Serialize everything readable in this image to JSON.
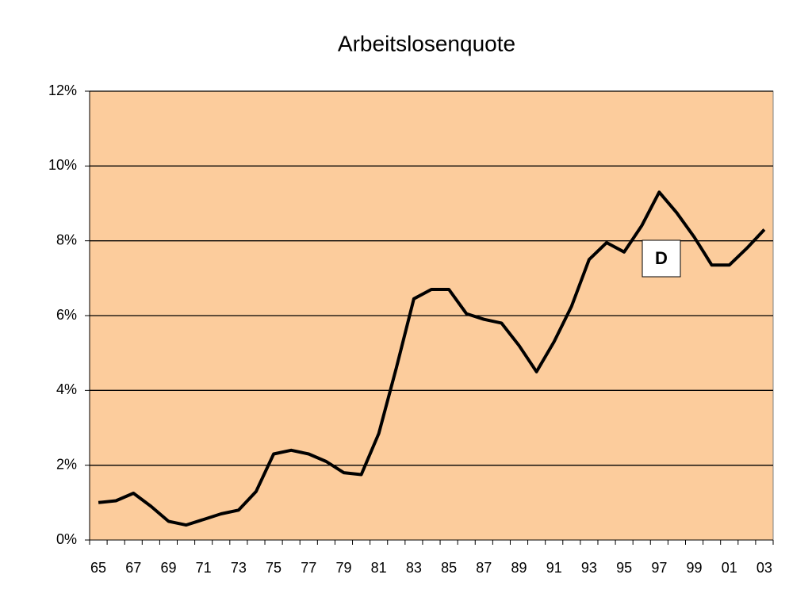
{
  "chart_data": {
    "type": "line",
    "title": "Arbeitslosenquote",
    "categories": [
      "65",
      null,
      "67",
      null,
      "69",
      null,
      "71",
      null,
      "73",
      null,
      "75",
      null,
      "77",
      null,
      "79",
      null,
      "81",
      null,
      "83",
      null,
      "85",
      null,
      "87",
      null,
      "89",
      null,
      "91",
      null,
      "93",
      null,
      "95",
      null,
      "97",
      null,
      "99",
      null,
      "01",
      null,
      "03"
    ],
    "series": [
      {
        "name": "D",
        "color": "#000000",
        "values": [
          1.0,
          1.05,
          1.25,
          0.9,
          0.5,
          0.4,
          0.55,
          0.7,
          0.8,
          1.3,
          2.3,
          2.4,
          2.3,
          2.1,
          1.8,
          1.75,
          2.85,
          4.6,
          6.45,
          6.7,
          6.7,
          6.05,
          5.9,
          5.8,
          5.2,
          4.5,
          5.3,
          6.25,
          7.5,
          7.95,
          7.7,
          8.4,
          9.3,
          8.75,
          8.1,
          7.35,
          7.35,
          7.8,
          8.3
        ]
      }
    ],
    "annotation": "D",
    "ylim": [
      0,
      12
    ],
    "yticks": [
      {
        "value": 0,
        "label": "0%"
      },
      {
        "value": 2,
        "label": "2%"
      },
      {
        "value": 4,
        "label": "4%"
      },
      {
        "value": 6,
        "label": "6%"
      },
      {
        "value": 8,
        "label": "8%"
      },
      {
        "value": 10,
        "label": "10%"
      },
      {
        "value": 12,
        "label": "12%"
      }
    ],
    "grid": true,
    "background": "#fccc9c"
  }
}
